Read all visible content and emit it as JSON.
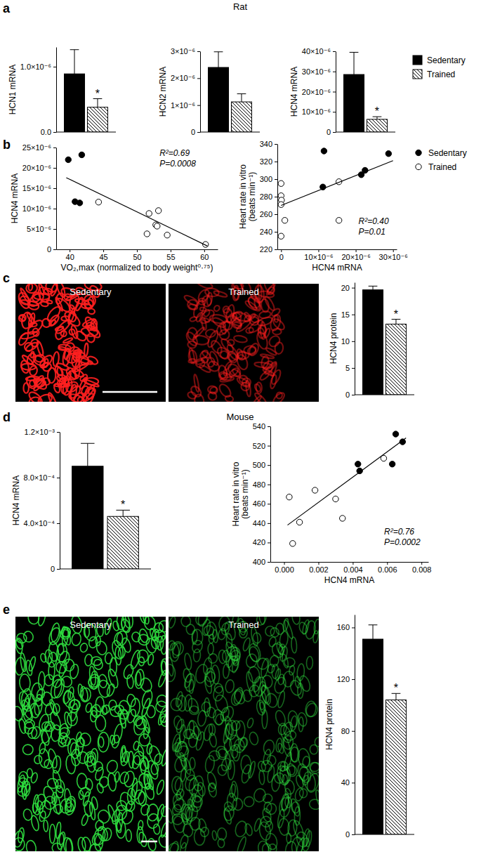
{
  "chart_data": [
    {
      "type": "bar",
      "ylabel": "HCN1 mRNA",
      "ylim": [
        0,
        1.3e-06
      ],
      "yticks": [
        {
          "value": 0,
          "label": "0.0"
        },
        {
          "value": 1e-06,
          "label": "1.0×10⁻⁶"
        }
      ],
      "series": [
        {
          "color": "#000000",
          "values": [
            8.9e-07
          ],
          "errors": [
            3.7e-07
          ]
        },
        {
          "color": "#000000",
          "values": [
            3.8e-07
          ],
          "errors": [
            1.3e-07
          ],
          "annotation": "*"
        }
      ]
    },
    {
      "type": "bar",
      "ylabel": "HCN2 mRNA",
      "ylim": [
        0,
        3e-06
      ],
      "yticks": [
        0,
        {
          "value": 1e-06,
          "label": "1×10⁻⁶"
        },
        {
          "value": 2e-06,
          "label": "2×10⁻⁶"
        },
        {
          "value": 3e-06,
          "label": "3×10⁻⁶"
        }
      ],
      "series": [
        {
          "color": "#000000",
          "values": [
            2.4e-06
          ],
          "errors": [
            5.8e-07
          ]
        },
        {
          "color": "#000000",
          "values": [
            1.12e-06
          ],
          "errors": [
            3e-07
          ]
        }
      ]
    },
    {
      "type": "bar",
      "ylabel": "HCN4 mRNA",
      "ylim": [
        0,
        4e-05
      ],
      "legend": "right",
      "yticks": [
        0,
        {
          "value": 1e-05,
          "label": "10×10⁻⁶"
        },
        {
          "value": 2e-05,
          "label": "20×10⁻⁶"
        },
        {
          "value": 3e-05,
          "label": "30×10⁻⁶"
        },
        {
          "value": 4e-05,
          "label": "40×10⁻⁶"
        }
      ],
      "series": [
        {
          "name": "Sedentary",
          "color": "#000000",
          "values": [
            2.85e-05
          ],
          "errors": [
            1.1e-05
          ]
        },
        {
          "name": "Trained",
          "color": "#000000",
          "values": [
            6.3e-06
          ],
          "errors": [
            1.3e-06
          ],
          "annotation": "*"
        }
      ]
    },
    {
      "type": "scatter",
      "xlabel": "VO₂,max (normalized to body weight⁰·⁷⁵)",
      "ylabel": "HCN4 mRNA",
      "xlim": [
        38,
        62
      ],
      "xticks": [
        40,
        45,
        50,
        55,
        60
      ],
      "ylim": [
        0,
        2.5e-05
      ],
      "yticks": [
        0,
        {
          "value": 5e-06,
          "label": "5×10⁻⁶"
        },
        {
          "value": 1e-05,
          "label": "10×10⁻⁶"
        },
        {
          "value": 1.5e-05,
          "label": "15×10⁻⁶"
        },
        {
          "value": 2e-05,
          "label": "20×10⁻⁶"
        },
        {
          "value": 2.5e-05,
          "label": "25×10⁻⁶"
        }
      ],
      "annotations": [
        "R²=0.69",
        "P=0.0008"
      ],
      "series": [
        {
          "type": "scatter",
          "marker": "circle",
          "color": "#000000",
          "x": [
            39.8,
            41.8,
            40.8,
            41.5
          ],
          "values": [
            2.2e-05,
            2.32e-05,
            1.17e-05,
            1.14e-05
          ]
        },
        {
          "type": "scatter",
          "marker": "circle-open",
          "color": "#000000",
          "x": [
            44.3,
            51.8,
            53.2,
            52.8,
            53.0,
            51.5,
            54.5,
            60.2
          ],
          "values": [
            1.16e-05,
            8.8e-06,
            9.5e-06,
            6e-06,
            5.7e-06,
            3.8e-06,
            3.5e-06,
            1.2e-06
          ]
        },
        {
          "type": "line",
          "line_style": "solid",
          "color": "#000000",
          "x": [
            39.5,
            60.5
          ],
          "values": [
            1.76e-05,
            8e-07
          ]
        }
      ]
    },
    {
      "type": "scatter",
      "xlabel": "HCN4 mRNA",
      "ylabel": "Heart rate in vitro (beats min⁻¹)",
      "legend": "right",
      "xlim": [
        -1e-06,
        3.1e-05
      ],
      "xticks": [
        0,
        {
          "value": 1e-05,
          "label": "10×10⁻⁶"
        },
        {
          "value": 2e-05,
          "label": "20×10⁻⁶"
        },
        {
          "value": 3e-05,
          "label": "30×10⁻⁶"
        }
      ],
      "ylim": [
        220,
        340
      ],
      "yticks": [
        220,
        240,
        260,
        280,
        300,
        320,
        340
      ],
      "annotations": [
        "R²=0.40",
        "P=0.01"
      ],
      "series": [
        {
          "name": "Sedentary",
          "type": "scatter",
          "marker": "circle",
          "color": "#000000",
          "x": [
            1.15e-05,
            1.12e-05,
            2.15e-05,
            2.25e-05,
            2.88e-05
          ],
          "values": [
            332,
            291,
            305,
            310,
            329
          ]
        },
        {
          "name": "Trained",
          "type": "scatter",
          "marker": "circle-open",
          "color": "#000000",
          "x": [
            0,
            0,
            1e-07,
            0,
            1e-06,
            0,
            1.55e-05,
            1.55e-05
          ],
          "values": [
            295,
            281,
            276,
            271,
            253,
            235,
            297,
            253
          ]
        },
        {
          "type": "line",
          "line_style": "solid",
          "color": "#000000",
          "x": [
            0,
            3e-05
          ],
          "values": [
            270,
            321
          ]
        }
      ]
    },
    {
      "type": "bar",
      "ylabel": "HCN4 protein",
      "ylim": [
        0,
        21
      ],
      "yticks": [
        0,
        5,
        10,
        15,
        20
      ],
      "series": [
        {
          "color": "#000000",
          "values": [
            19.6
          ],
          "errors": [
            0.7
          ]
        },
        {
          "color": "#000000",
          "values": [
            13.2
          ],
          "errors": [
            0.9
          ],
          "annotation": "*"
        }
      ]
    },
    {
      "type": "bar",
      "ylabel": "HCN4 mRNA",
      "ylim": [
        0,
        0.0012
      ],
      "yticks": [
        0,
        {
          "value": 0.0004,
          "label": "4.0×10⁻⁴"
        },
        {
          "value": 0.0008,
          "label": "8.0×10⁻⁴"
        },
        {
          "value": 0.0012,
          "label": "1.2×10⁻³"
        }
      ],
      "series": [
        {
          "color": "#000000",
          "values": [
            0.0009
          ],
          "errors": [
            0.0002
          ]
        },
        {
          "color": "#000000",
          "values": [
            0.00046
          ],
          "errors": [
            5.5e-05
          ],
          "annotation": "*"
        }
      ]
    },
    {
      "type": "scatter",
      "xlabel": "HCN4 mRNA",
      "ylabel": "Heart rate in vitro (beats min⁻¹)",
      "xlim": [
        -0.0008,
        0.0084
      ],
      "xticks": [
        {
          "value": 0,
          "label": "0.000"
        },
        0.002,
        0.004,
        0.006,
        0.008
      ],
      "ylim": [
        400,
        540
      ],
      "yticks": [
        400,
        420,
        440,
        460,
        480,
        500,
        520,
        540
      ],
      "annotations": [
        "R²=0.76",
        "P=0.0002"
      ],
      "series": [
        {
          "type": "scatter",
          "marker": "circle",
          "color": "#000000",
          "x": [
            0.0043,
            0.0044,
            0.0063,
            0.0065,
            0.0069
          ],
          "values": [
            501,
            494,
            501,
            532,
            524
          ]
        },
        {
          "type": "scatter",
          "marker": "circle-open",
          "color": "#000000",
          "x": [
            0.0003,
            0.0005,
            0.0009,
            0.0018,
            0.003,
            0.0034,
            0.0058
          ],
          "values": [
            467,
            419,
            441,
            474,
            465,
            445,
            507
          ]
        },
        {
          "type": "line",
          "line_style": "solid",
          "color": "#000000",
          "x": [
            0.0002,
            0.0071
          ],
          "values": [
            438,
            528
          ]
        }
      ]
    },
    {
      "type": "bar",
      "ylabel": "HCN4 protein",
      "ylim": [
        0,
        170
      ],
      "yticks": [
        0,
        40,
        80,
        120,
        160
      ],
      "series": [
        {
          "color": "#000000",
          "values": [
            151
          ],
          "errors": [
            11
          ]
        },
        {
          "color": "#000000",
          "values": [
            104
          ],
          "errors": [
            5
          ],
          "annotation": "*"
        }
      ]
    }
  ],
  "figure": {
    "panel_labels": [
      "a",
      "b",
      "c",
      "d",
      "e"
    ],
    "headers": [
      "Rat",
      "Mouse"
    ],
    "images": [
      {
        "label": "Sedentary",
        "color": "#ff2020"
      },
      {
        "label": "Trained",
        "color": "#ff2020"
      },
      {
        "label": "Sedentary",
        "color": "#30e040"
      },
      {
        "label": "Trained",
        "color": "#30e040"
      }
    ]
  }
}
